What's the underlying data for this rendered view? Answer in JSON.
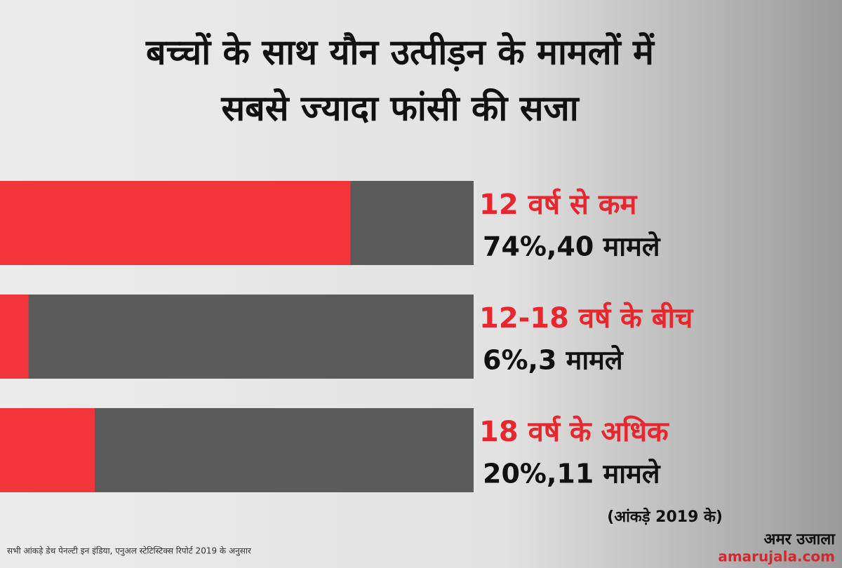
{
  "chart_data": {
    "type": "bar",
    "title": [
      "बच्चों के साथ यौन उत्पीड़न के मामलों में",
      "सबसे ज्यादा फांसी की सजा"
    ],
    "categories": [
      "12 वर्ष से कम",
      "12-18 वर्ष के बीच",
      "18 वर्ष के अधिक"
    ],
    "values": [
      74,
      6,
      20
    ],
    "value_labels": [
      "74%,40 मामले",
      "6%,3 मामले",
      "20%,11 मामले"
    ],
    "xlim": [
      0,
      100
    ],
    "color": "#f2353b",
    "track_color": "#5b5b5b",
    "note": "(आंकड़े 2019 के)",
    "source": "सभी आंकड़े डेथ पेनल्टी इन इंडिया, एनुअल स्टेटिस्टिक्स रिपोर्ट 2019 के अनुसार",
    "logo": [
      "अमर उजाला",
      "amarujala.com"
    ]
  }
}
